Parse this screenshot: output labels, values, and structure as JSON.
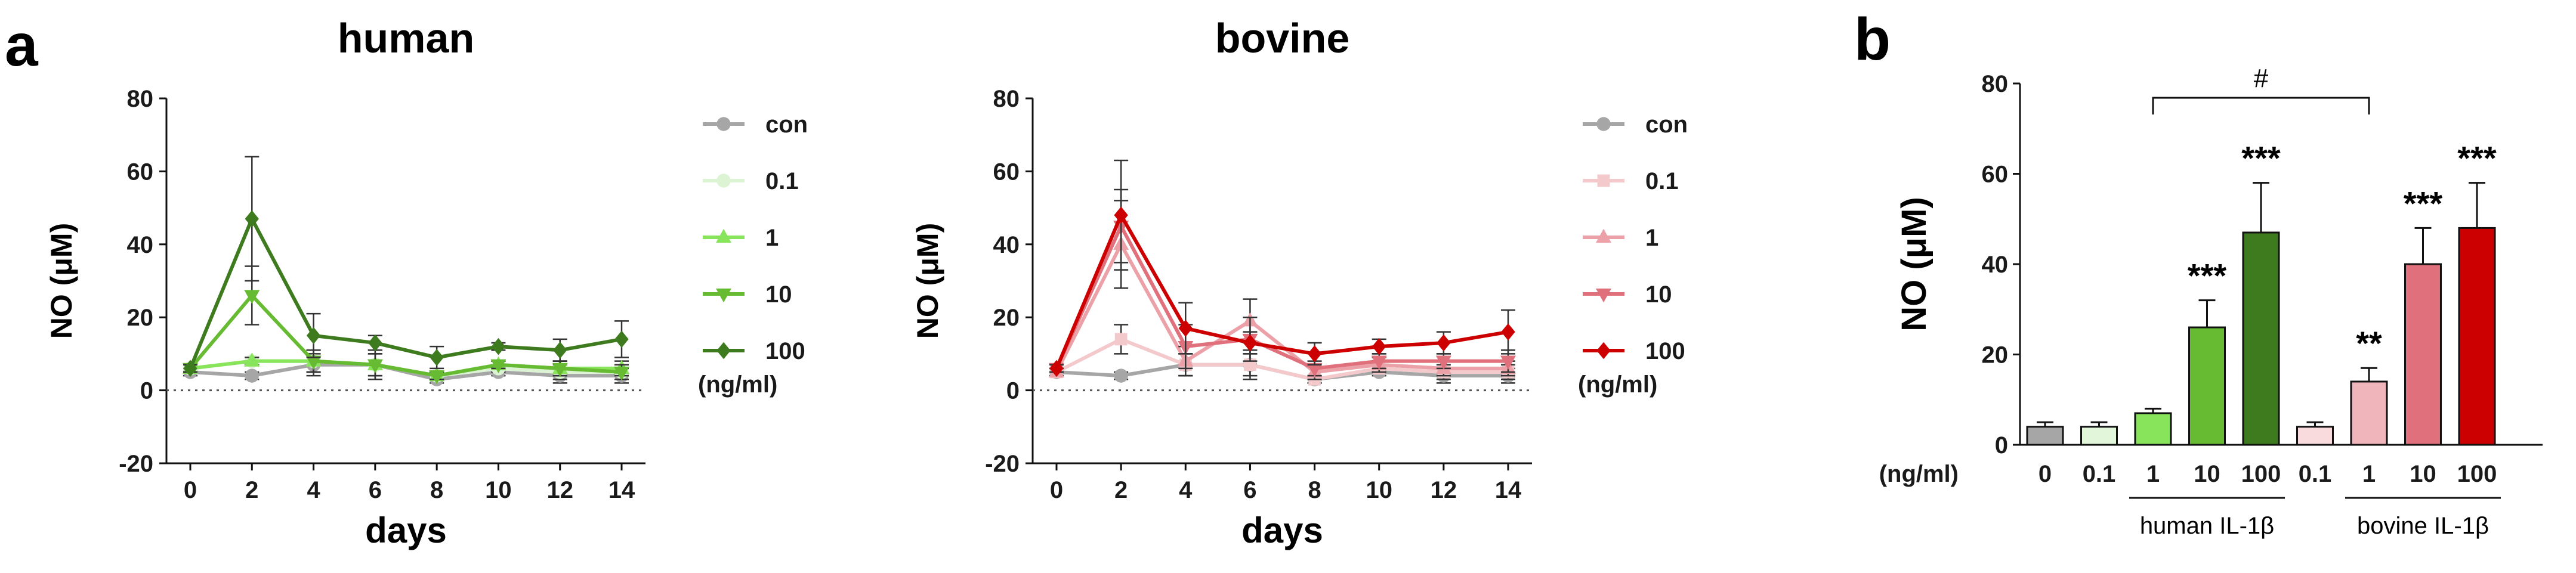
{
  "panel_labels": {
    "a": "a",
    "b": "b"
  },
  "chart_data": [
    {
      "type": "line",
      "title": "human",
      "xlabel": "days",
      "ylabel": "NO (μM)",
      "x": [
        0,
        2,
        4,
        6,
        8,
        10,
        12,
        14
      ],
      "xticks": [
        "0",
        "2",
        "4",
        "6",
        "8",
        "10",
        "12",
        "14"
      ],
      "ylim": [
        -20,
        80
      ],
      "yticks": [
        "80",
        "60",
        "40",
        "20",
        "0",
        "-20"
      ],
      "zero_line": "dotted",
      "legend_position": "right",
      "legend_unit": "(ng/ml)",
      "series": [
        {
          "name": "con",
          "marker": "circle",
          "color": "#a6a6a6",
          "values": [
            5,
            4,
            7,
            7,
            3,
            5,
            4,
            4
          ],
          "errors": [
            1,
            1,
            3,
            4,
            1,
            1,
            2,
            2
          ]
        },
        {
          "name": "0.1",
          "marker": "circle",
          "color": "#dcf4d4",
          "values": [
            6,
            8,
            8,
            7,
            4,
            6,
            5,
            5
          ],
          "errors": [
            1,
            1,
            3,
            3,
            1,
            1,
            2,
            2
          ]
        },
        {
          "name": "1",
          "marker": "triangle-up",
          "color": "#88e45a",
          "values": [
            6,
            8,
            8,
            7,
            4,
            7,
            6,
            6
          ],
          "errors": [
            1,
            1,
            3,
            3,
            1,
            1,
            2,
            2
          ]
        },
        {
          "name": "10",
          "marker": "triangle-down",
          "color": "#66bb33",
          "values": [
            6,
            26,
            8,
            7,
            4,
            7,
            6,
            5
          ],
          "errors": [
            1,
            8,
            3,
            4,
            1,
            1,
            2,
            2
          ]
        },
        {
          "name": "100",
          "marker": "diamond",
          "color": "#3e7b1f",
          "values": [
            6,
            47,
            15,
            13,
            9,
            12,
            11,
            14
          ],
          "errors": [
            1,
            17,
            6,
            2,
            3,
            1,
            3,
            5
          ]
        }
      ]
    },
    {
      "type": "line",
      "title": "bovine",
      "xlabel": "days",
      "ylabel": "NO (μM)",
      "x": [
        0,
        2,
        4,
        6,
        8,
        10,
        12,
        14
      ],
      "xticks": [
        "0",
        "2",
        "4",
        "6",
        "8",
        "10",
        "12",
        "14"
      ],
      "ylim": [
        -20,
        80
      ],
      "yticks": [
        "80",
        "60",
        "40",
        "20",
        "0",
        "-20"
      ],
      "zero_line": "dotted",
      "legend_position": "right",
      "legend_unit": "(ng/ml)",
      "series": [
        {
          "name": "con",
          "marker": "circle",
          "color": "#a6a6a6",
          "values": [
            5,
            4,
            7,
            7,
            3,
            5,
            4,
            4
          ],
          "errors": [
            1,
            1,
            3,
            4,
            1,
            1,
            2,
            2
          ]
        },
        {
          "name": "0.1",
          "marker": "square",
          "color": "#f3c9cc",
          "values": [
            5,
            14,
            7,
            7,
            3,
            6,
            5,
            5
          ],
          "errors": [
            1,
            4,
            3,
            3,
            1,
            1,
            2,
            2
          ]
        },
        {
          "name": "1",
          "marker": "triangle-up",
          "color": "#eba1a7",
          "values": [
            5,
            40,
            8,
            19,
            5,
            7,
            6,
            6
          ],
          "errors": [
            1,
            12,
            4,
            6,
            2,
            2,
            2,
            2
          ]
        },
        {
          "name": "10",
          "marker": "triangle-down",
          "color": "#e0707b",
          "values": [
            6,
            45,
            12,
            14,
            6,
            8,
            8,
            8
          ],
          "errors": [
            1,
            10,
            6,
            6,
            2,
            2,
            2,
            3
          ]
        },
        {
          "name": "100",
          "marker": "diamond",
          "color": "#cc0000",
          "values": [
            6,
            48,
            17,
            13,
            10,
            12,
            13,
            16
          ],
          "errors": [
            1,
            15,
            7,
            3,
            3,
            2,
            3,
            6
          ]
        }
      ]
    },
    {
      "type": "bar",
      "ylabel": "NO (μM)",
      "ylim": [
        0,
        80
      ],
      "yticks": [
        "80",
        "60",
        "40",
        "20",
        "0"
      ],
      "categories": [
        "0",
        "0.1",
        "1",
        "10",
        "100",
        "0.1",
        "1",
        "10",
        "100"
      ],
      "x_unit_label": "(ng/ml)",
      "values": [
        4,
        4,
        7,
        26,
        47,
        4,
        14,
        40,
        48
      ],
      "errors": [
        1,
        1,
        1,
        6,
        11,
        1,
        3,
        8,
        10
      ],
      "colors": [
        "#a6a6a6",
        "#e2f6da",
        "#88e45a",
        "#66bb33",
        "#3e7b1f",
        "#f9dadd",
        "#f0b5bb",
        "#e0707b",
        "#cc0000"
      ],
      "significance": [
        "",
        "",
        "",
        "***",
        "***",
        "",
        "**",
        "***",
        "***"
      ],
      "comparison": {
        "from_category_index": 2,
        "to_category_index": 6,
        "label": "#"
      },
      "groups": [
        {
          "label": "human IL-1β",
          "from_index": 2,
          "to_index": 4
        },
        {
          "label": "bovine IL-1β",
          "from_index": 6,
          "to_index": 8
        }
      ]
    }
  ]
}
